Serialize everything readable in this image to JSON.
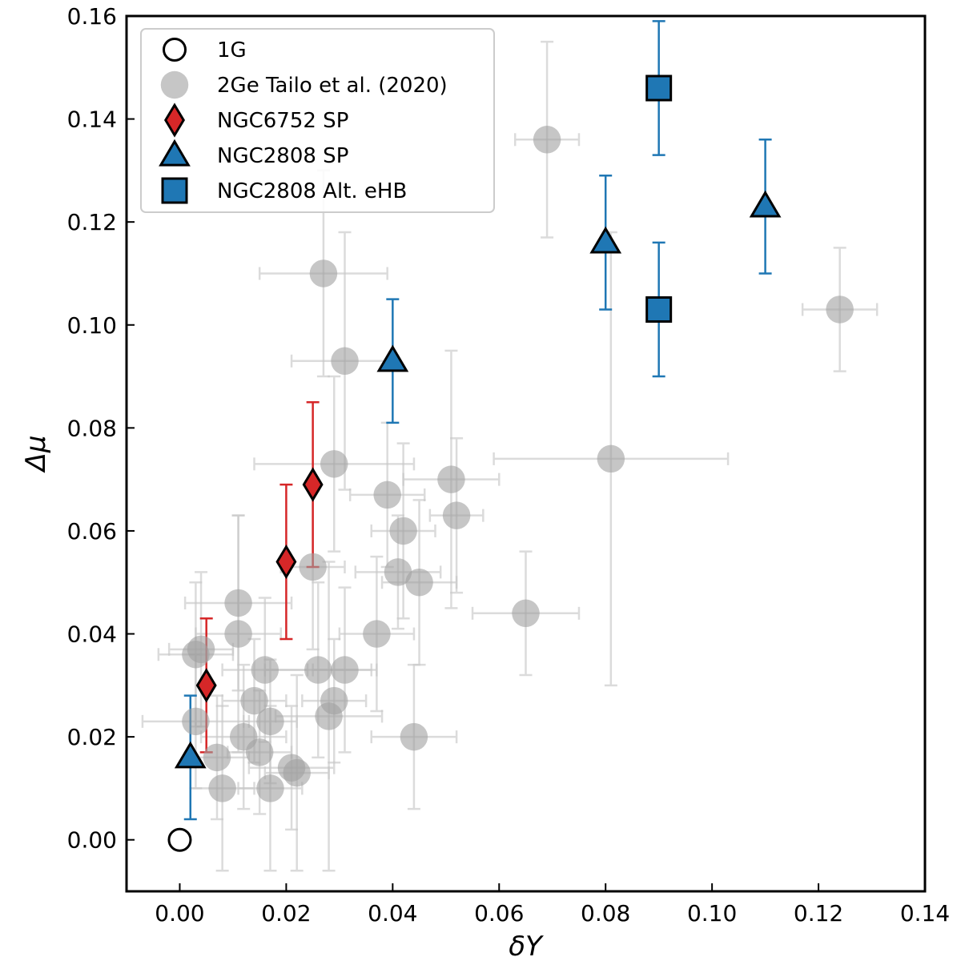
{
  "chart_data": {
    "type": "scatter",
    "xlabel": "δY",
    "ylabel": "Δμ",
    "xlim": [
      -0.01,
      0.14
    ],
    "ylim": [
      -0.01,
      0.16
    ],
    "xticks": [
      0.0,
      0.02,
      0.04,
      0.06,
      0.08,
      0.1,
      0.12,
      0.14
    ],
    "yticks": [
      0.0,
      0.02,
      0.04,
      0.06,
      0.08,
      0.1,
      0.12,
      0.14,
      0.16
    ],
    "tick_decimals": 2,
    "grid": false,
    "legend_position": "top-left",
    "series": [
      {
        "name": "1G",
        "marker": "circle-open",
        "color": "#ffffff",
        "edge": "#000000",
        "points": [
          {
            "x": 0.0,
            "y": 0.0
          }
        ]
      },
      {
        "name": "2Ge Tailo et al. (2020)",
        "marker": "circle",
        "color": "#a0a0a0",
        "errcolor": "#c8c8c8",
        "points": [
          {
            "x": 0.003,
            "y": 0.036,
            "xerr": 0.007,
            "yerr": 0.014
          },
          {
            "x": 0.004,
            "y": 0.037,
            "xerr": 0.006,
            "yerr": 0.015
          },
          {
            "x": 0.003,
            "y": 0.023,
            "xerr": 0.01,
            "yerr": 0.013
          },
          {
            "x": 0.007,
            "y": 0.016,
            "xerr": 0.006,
            "yerr": 0.012
          },
          {
            "x": 0.008,
            "y": 0.01,
            "xerr": 0.006,
            "yerr": 0.016
          },
          {
            "x": 0.011,
            "y": 0.046,
            "xerr": 0.01,
            "yerr": 0.017
          },
          {
            "x": 0.011,
            "y": 0.04,
            "xerr": 0.008,
            "yerr": 0.023
          },
          {
            "x": 0.012,
            "y": 0.02,
            "xerr": 0.008,
            "yerr": 0.014
          },
          {
            "x": 0.014,
            "y": 0.027,
            "xerr": 0.006,
            "yerr": 0.012
          },
          {
            "x": 0.015,
            "y": 0.017,
            "xerr": 0.006,
            "yerr": 0.012
          },
          {
            "x": 0.016,
            "y": 0.033,
            "xerr": 0.008,
            "yerr": 0.014
          },
          {
            "x": 0.017,
            "y": 0.023,
            "xerr": 0.005,
            "yerr": 0.012
          },
          {
            "x": 0.017,
            "y": 0.01,
            "xerr": 0.006,
            "yerr": 0.016
          },
          {
            "x": 0.021,
            "y": 0.014,
            "xerr": 0.008,
            "yerr": 0.012
          },
          {
            "x": 0.022,
            "y": 0.013,
            "xerr": 0.006,
            "yerr": 0.019
          },
          {
            "x": 0.025,
            "y": 0.053,
            "xerr": 0.006,
            "yerr": 0.016
          },
          {
            "x": 0.026,
            "y": 0.033,
            "xerr": 0.01,
            "yerr": 0.017
          },
          {
            "x": 0.027,
            "y": 0.11,
            "xerr": 0.012,
            "yerr": 0.02
          },
          {
            "x": 0.028,
            "y": 0.024,
            "xerr": 0.01,
            "yerr": 0.03
          },
          {
            "x": 0.029,
            "y": 0.027,
            "xerr": 0.006,
            "yerr": 0.012
          },
          {
            "x": 0.029,
            "y": 0.073,
            "xerr": 0.015,
            "yerr": 0.017
          },
          {
            "x": 0.031,
            "y": 0.093,
            "xerr": 0.01,
            "yerr": 0.025
          },
          {
            "x": 0.031,
            "y": 0.033,
            "xerr": 0.006,
            "yerr": 0.016
          },
          {
            "x": 0.037,
            "y": 0.04,
            "xerr": 0.007,
            "yerr": 0.015
          },
          {
            "x": 0.039,
            "y": 0.067,
            "xerr": 0.007,
            "yerr": 0.014
          },
          {
            "x": 0.041,
            "y": 0.052,
            "xerr": 0.008,
            "yerr": 0.011
          },
          {
            "x": 0.042,
            "y": 0.06,
            "xerr": 0.006,
            "yerr": 0.017
          },
          {
            "x": 0.044,
            "y": 0.02,
            "xerr": 0.008,
            "yerr": 0.014
          },
          {
            "x": 0.045,
            "y": 0.05,
            "xerr": 0.007,
            "yerr": 0.016
          },
          {
            "x": 0.051,
            "y": 0.07,
            "xerr": 0.009,
            "yerr": 0.025
          },
          {
            "x": 0.052,
            "y": 0.063,
            "xerr": 0.005,
            "yerr": 0.015
          },
          {
            "x": 0.065,
            "y": 0.044,
            "xerr": 0.01,
            "yerr": 0.012
          },
          {
            "x": 0.069,
            "y": 0.136,
            "xerr": 0.006,
            "yerr": 0.019
          },
          {
            "x": 0.081,
            "y": 0.074,
            "xerr": 0.022,
            "yerr": 0.044
          },
          {
            "x": 0.124,
            "y": 0.103,
            "xerr": 0.007,
            "yerr": 0.012
          }
        ]
      },
      {
        "name": "NGC6752 SP",
        "marker": "diamond",
        "color": "#d62728",
        "edge": "#000000",
        "errcolor": "#d62728",
        "points": [
          {
            "x": 0.005,
            "y": 0.03,
            "yerr": 0.013
          },
          {
            "x": 0.02,
            "y": 0.054,
            "yerr": 0.015
          },
          {
            "x": 0.025,
            "y": 0.069,
            "yerr": 0.016
          }
        ]
      },
      {
        "name": "NGC2808 SP",
        "marker": "triangle",
        "color": "#1f77b4",
        "edge": "#000000",
        "errcolor": "#1f77b4",
        "points": [
          {
            "x": 0.002,
            "y": 0.016,
            "yerr": 0.012
          },
          {
            "x": 0.04,
            "y": 0.093,
            "yerr": 0.012
          },
          {
            "x": 0.08,
            "y": 0.116,
            "yerr": 0.013
          },
          {
            "x": 0.11,
            "y": 0.123,
            "yerr": 0.013
          }
        ]
      },
      {
        "name": "NGC2808 Alt. eHB",
        "marker": "square",
        "color": "#1f77b4",
        "edge": "#000000",
        "errcolor": "#1f77b4",
        "points": [
          {
            "x": 0.09,
            "y": 0.146,
            "yerr": 0.013
          },
          {
            "x": 0.09,
            "y": 0.103,
            "yerr": 0.013
          }
        ]
      }
    ]
  }
}
